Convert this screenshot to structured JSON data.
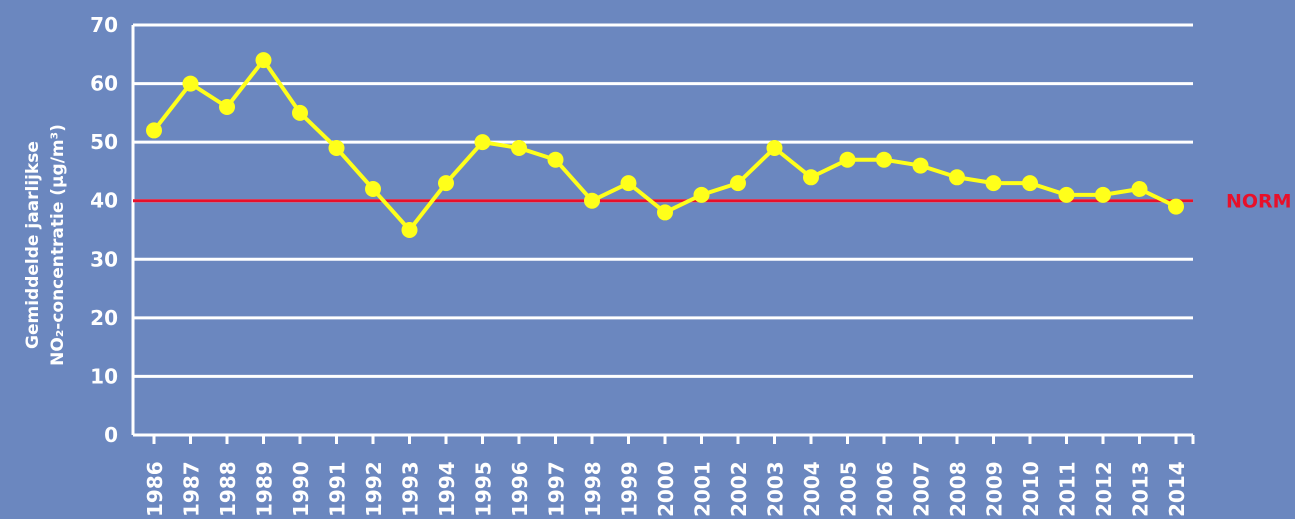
{
  "chart_data": {
    "type": "line",
    "ylabel": [
      "Gemiddelde jaarlijkse",
      "NO₂-concentratie (µg/m³)"
    ],
    "categories": [
      "1986",
      "1987",
      "1988",
      "1989",
      "1990",
      "1991",
      "1992",
      "1993",
      "1994",
      "1995",
      "1996",
      "1997",
      "1998",
      "1999",
      "2000",
      "2001",
      "2002",
      "2003",
      "2004",
      "2005",
      "2006",
      "2007",
      "2008",
      "2009",
      "2010",
      "2011",
      "2012",
      "2013",
      "2014"
    ],
    "series": [
      {
        "color": "#ffff1a",
        "values": [
          52,
          60,
          56,
          64,
          55,
          49,
          42,
          35,
          43,
          50,
          49,
          47,
          40,
          43,
          38,
          41,
          43,
          49,
          44,
          47,
          47,
          46,
          44,
          43,
          43,
          41,
          41,
          42,
          39
        ]
      }
    ],
    "ylim": [
      0,
      70
    ],
    "yticks": [
      0,
      10,
      20,
      30,
      40,
      50,
      60,
      70
    ],
    "grid": true,
    "norm": {
      "value": 40,
      "label": "NORM",
      "color": "#e8102a"
    }
  }
}
